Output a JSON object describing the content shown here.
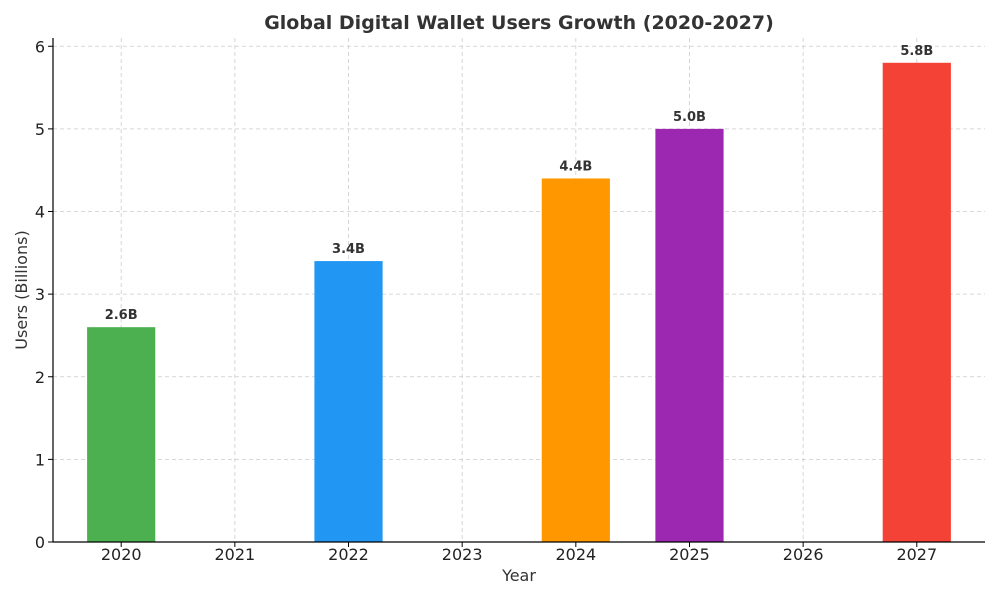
{
  "chart_data": {
    "type": "bar",
    "title": "Global Digital Wallet Users Growth (2020-2027)",
    "xlabel": "Year",
    "ylabel": "Users (Billions)",
    "categories": [
      "2020",
      "2021",
      "2022",
      "2023",
      "2024",
      "2025",
      "2026",
      "2027"
    ],
    "bars": [
      {
        "category": "2020",
        "value": 2.6,
        "label": "2.6B",
        "color": "#4caf50"
      },
      {
        "category": "2022",
        "value": 3.4,
        "label": "3.4B",
        "color": "#2196f3"
      },
      {
        "category": "2024",
        "value": 4.4,
        "label": "4.4B",
        "color": "#ff9800"
      },
      {
        "category": "2025",
        "value": 5.0,
        "label": "5.0B",
        "color": "#9c27b0"
      },
      {
        "category": "2027",
        "value": 5.8,
        "label": "5.8B",
        "color": "#f44336"
      }
    ],
    "ylim": [
      0,
      6.1
    ],
    "yticks": [
      0,
      1,
      2,
      3,
      4,
      5,
      6
    ],
    "grid": true,
    "legend": "none"
  }
}
